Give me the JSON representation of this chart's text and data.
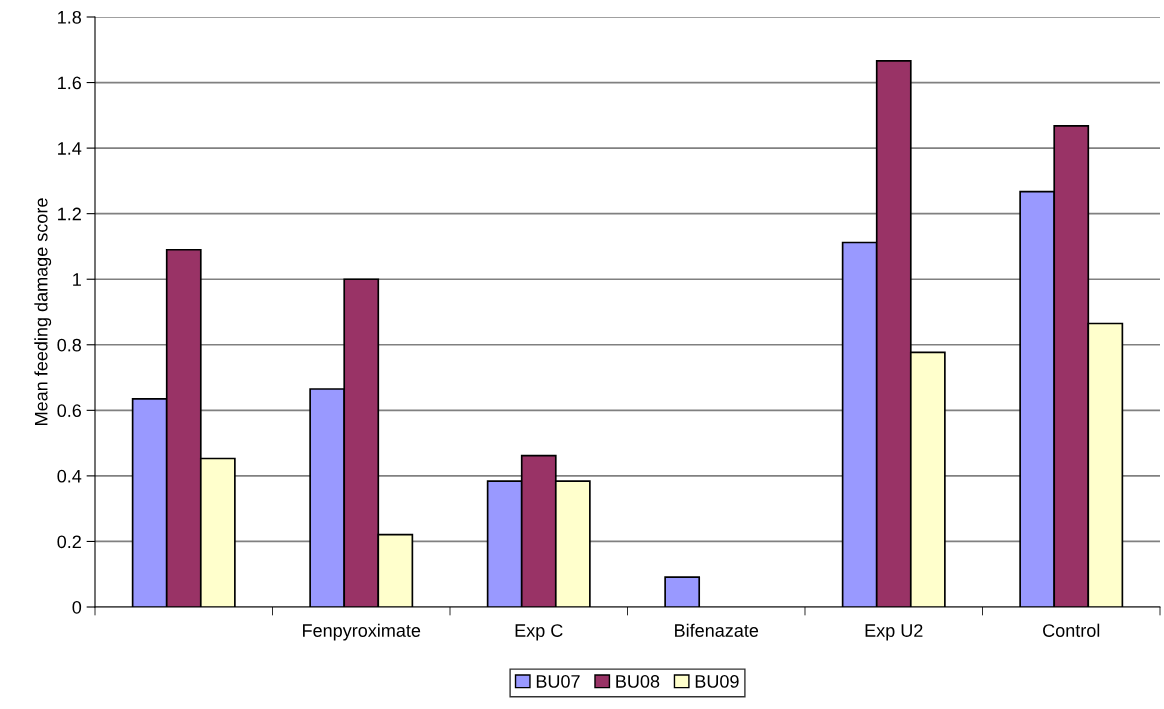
{
  "chart_data": {
    "type": "bar",
    "ylabel": "Mean feeding damage score",
    "categories": [
      null,
      "Fenpyroximate",
      "Exp C",
      "Bifenazate",
      "Exp U2",
      "Control"
    ],
    "series": [
      {
        "name": "BU07",
        "color": "#9999ff",
        "values": [
          0.635,
          0.665,
          0.384,
          0.091,
          1.112,
          1.267
        ]
      },
      {
        "name": "BU08",
        "color": "#993366",
        "values": [
          1.09,
          1.0,
          0.462,
          0,
          1.666,
          1.468
        ]
      },
      {
        "name": "BU09",
        "color": "#ffffcc",
        "values": [
          0.453,
          0.221,
          0.384,
          0,
          0.777,
          0.865
        ]
      }
    ],
    "ylim": [
      0,
      1.8
    ],
    "yticks": [
      0,
      0.2,
      0.4,
      0.6,
      0.8,
      {
        "value": 1,
        "label": "1"
      },
      1.2,
      1.4,
      1.6,
      1.8
    ],
    "grid": "y",
    "legend": "bottom"
  }
}
